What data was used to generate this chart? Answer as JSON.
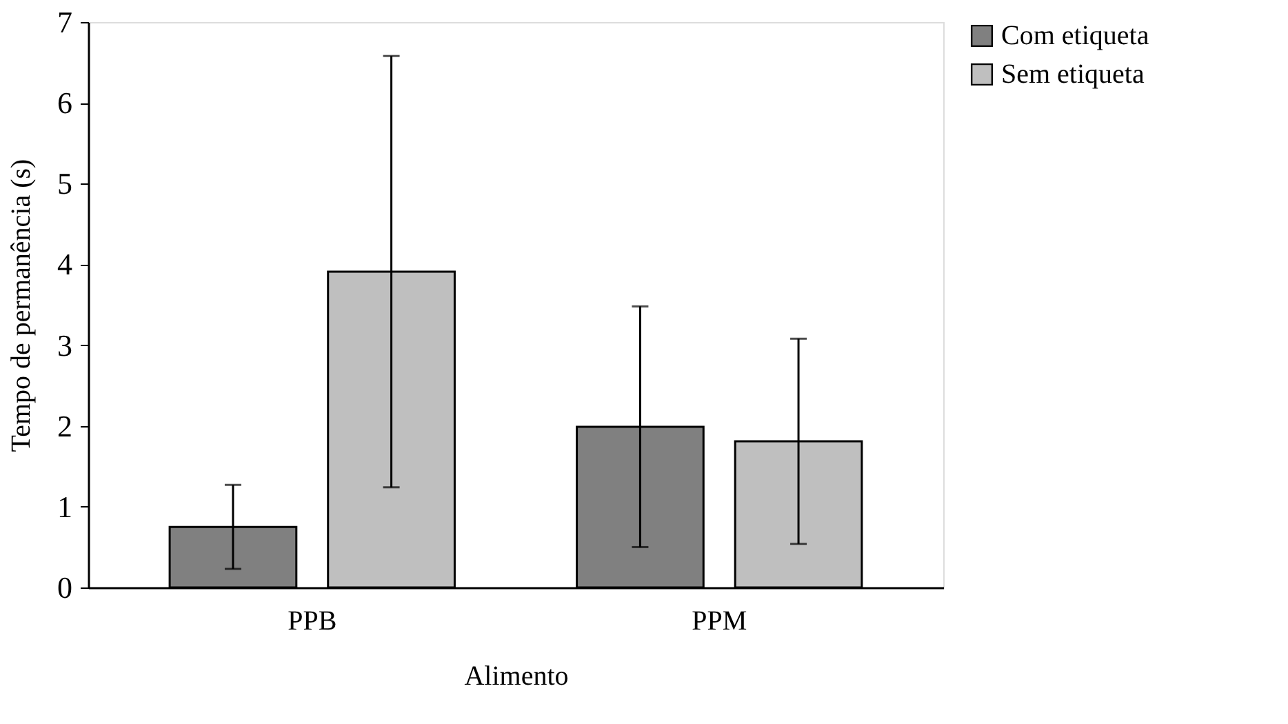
{
  "chart_data": {
    "type": "bar",
    "xlabel": "Alimento",
    "ylabel": "Tempo de permanência (s)",
    "categories": [
      "PPB",
      "PPM"
    ],
    "series": [
      {
        "name": "Com etiqueta",
        "color": "#808080",
        "values": [
          0.75,
          1.99
        ],
        "errors": [
          0.52,
          1.49
        ]
      },
      {
        "name": "Sem etiqueta",
        "color": "#bfbfbf",
        "values": [
          3.91,
          1.81
        ],
        "errors": [
          2.67,
          1.27
        ]
      }
    ],
    "ylim": [
      0,
      7
    ],
    "yticks": [
      0,
      1,
      2,
      3,
      4,
      5,
      6,
      7
    ],
    "grid": false,
    "legend": "right"
  }
}
